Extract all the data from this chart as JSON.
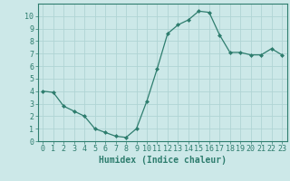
{
  "x": [
    0,
    1,
    2,
    3,
    4,
    5,
    6,
    7,
    8,
    9,
    10,
    11,
    12,
    13,
    14,
    15,
    16,
    17,
    18,
    19,
    20,
    21,
    22,
    23
  ],
  "y": [
    4.0,
    3.9,
    2.8,
    2.4,
    2.0,
    1.0,
    0.7,
    0.4,
    0.3,
    1.0,
    3.2,
    5.8,
    8.6,
    9.3,
    9.7,
    10.4,
    10.3,
    8.5,
    7.1,
    7.1,
    6.9,
    6.9,
    7.4,
    6.9
  ],
  "line_color": "#2e7d6e",
  "marker": "D",
  "marker_size": 2,
  "bg_color": "#cce8e8",
  "grid_color": "#b0d4d4",
  "xlabel": "Humidex (Indice chaleur)",
  "xlim": [
    -0.5,
    23.5
  ],
  "ylim": [
    0,
    11
  ],
  "yticks": [
    0,
    1,
    2,
    3,
    4,
    5,
    6,
    7,
    8,
    9,
    10
  ],
  "xticks": [
    0,
    1,
    2,
    3,
    4,
    5,
    6,
    7,
    8,
    9,
    10,
    11,
    12,
    13,
    14,
    15,
    16,
    17,
    18,
    19,
    20,
    21,
    22,
    23
  ],
  "tick_fontsize": 6,
  "label_fontsize": 7,
  "spine_color": "#2e7d6e",
  "tick_color": "#2e7d6e",
  "text_color": "#2e7d6e"
}
